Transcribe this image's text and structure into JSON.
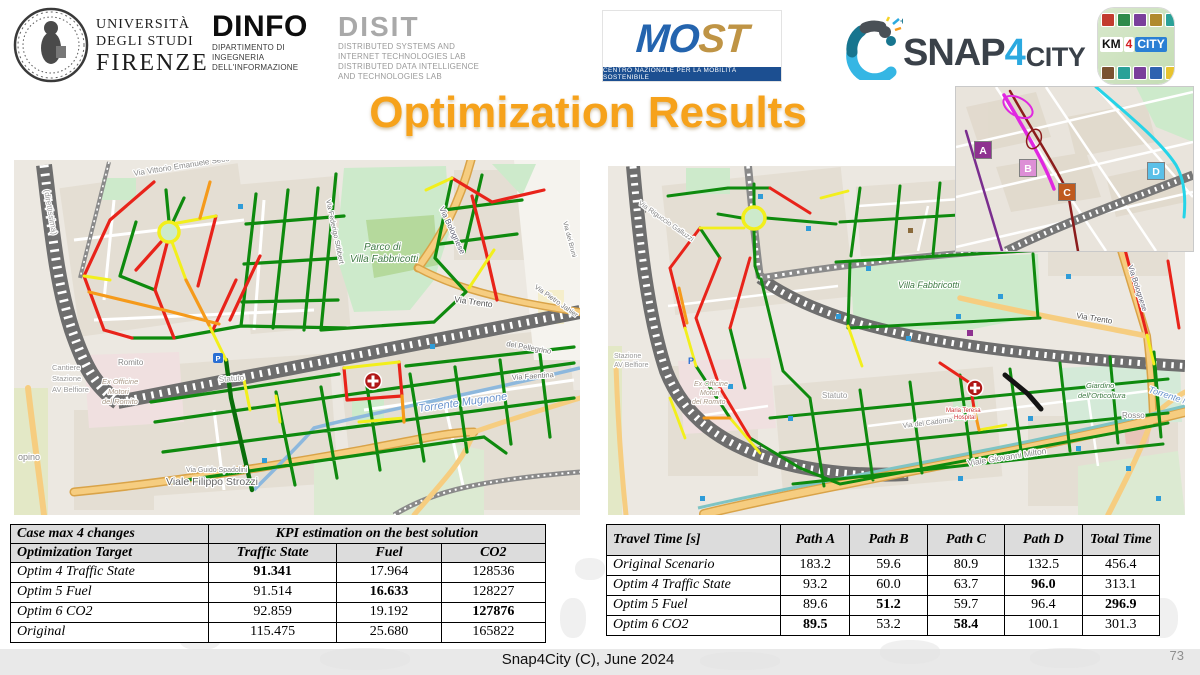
{
  "title": "Optimization Results",
  "header": {
    "unifi": {
      "line1": "UNIVERSITÀ",
      "line2": "DEGLI STUDI",
      "line3": "FIRENZE"
    },
    "dinfo": {
      "name": "DINFO",
      "lines": [
        "DIPARTIMENTO DI",
        "INGEGNERIA",
        "DELL'INFORMAZIONE"
      ]
    },
    "disit": {
      "name": "DISIT",
      "lines": [
        "DISTRIBUTED SYSTEMS AND",
        "INTERNET TECHNOLOGIES LAB",
        "DISTRIBUTED DATA INTELLIGENCE",
        "AND TECHNOLOGIES LAB"
      ]
    },
    "most": {
      "mo": "MO",
      "st": "ST",
      "caption": "CENTRO NAZIONALE PER LA MOBILITÀ SOSTENIBILE"
    },
    "snap4city": {
      "snap": "SNAP",
      "four": "4",
      "city": "CITY"
    },
    "km4city": {
      "km": "KM",
      "four": "4",
      "city": "CITY"
    }
  },
  "maps": {
    "left": {
      "labels": {
        "vittorio": "Via Vittorio Emanuele Seco",
        "direttissima": "(direttissima)",
        "parco1": "Parco di",
        "parco2": "Villa Fabbricotti",
        "stibbert": "Via Federigo Stibbert",
        "bolognese": "Via Bolognese",
        "trento": "Via Trento",
        "jahier": "Via Pietro Jahier",
        "bruni": "Via dei Bruni",
        "pellegrino": "del Pellegrino",
        "faentina": "Via Faentina",
        "mugnone": "Torrente Mugnone",
        "cantiere1": "Cantiere",
        "cantiere2": "Stazione",
        "cantiere3": "AV Belfiore",
        "romito": "Romito",
        "exofficine1": "Ex Officine",
        "exofficine2": "Motori",
        "exofficine3": "del Romito",
        "statuto": "Statuto",
        "spadolini": "Via Guido Spadolini",
        "strozzi": "Viale Filippo Strozzi",
        "opino": "opino",
        "parking": "P"
      }
    },
    "right": {
      "labels": {
        "galluzzi": "Via Riguccio Galluzzi",
        "villa": "Villa Fabbricotti",
        "trento": "Via Trento",
        "bolognese": "Via Bolognese",
        "belfiore1": "Stazione",
        "belfiore2": "AV Belfiore",
        "exofficine1": "Ex Officine",
        "exofficine2": "Motori",
        "exofficine3": "del Romito",
        "statuto": "Statuto",
        "cadorna": "Via del Cadorna",
        "orticoltura1": "Giardino",
        "orticoltura2": "dell'Orticoltura",
        "milton": "Viale Giovanni Milton",
        "rosso": "Rosso",
        "mugnone": "Torrente Mugnone",
        "hospital1": "Maria Teresa",
        "hospital2": "Hospital",
        "parking": "P"
      }
    },
    "inset": {
      "markers": [
        {
          "label": "A",
          "color": "#8e3290"
        },
        {
          "label": "B",
          "color": "#dd8fd6"
        },
        {
          "label": "C",
          "color": "#bf5a1f"
        },
        {
          "label": "D",
          "color": "#5bc0e8"
        }
      ]
    }
  },
  "tables": {
    "kpi": {
      "header_rows": [
        [
          {
            "t": "Case max 4 changes",
            "c": 1
          },
          {
            "t": "KPI estimation on the best solution",
            "c": 3
          }
        ],
        [
          {
            "t": "Optimization Target",
            "c": 1
          },
          {
            "t": "Traffic State",
            "c": 1
          },
          {
            "t": "Fuel",
            "c": 1
          },
          {
            "t": "CO2",
            "c": 1
          }
        ]
      ],
      "rows": [
        {
          "label": "Optim 4 Traffic State",
          "values": [
            "91.341",
            "17.964",
            "128536"
          ],
          "bold": [
            0
          ]
        },
        {
          "label": "Optim 5 Fuel",
          "values": [
            "91.514",
            "16.633",
            "128227"
          ],
          "bold": [
            1
          ]
        },
        {
          "label": "Optim 6 CO2",
          "values": [
            "92.859",
            "19.192",
            "127876"
          ],
          "bold": [
            2
          ]
        },
        {
          "label": "Original",
          "values": [
            "115.475",
            "25.680",
            "165822"
          ],
          "bold": []
        }
      ]
    },
    "travel_time": {
      "header_rows": [
        [
          {
            "t": "Travel Time [s]",
            "c": 1
          },
          {
            "t": "Path A",
            "c": 1
          },
          {
            "t": "Path B",
            "c": 1
          },
          {
            "t": "Path C",
            "c": 1
          },
          {
            "t": "Path D",
            "c": 1
          },
          {
            "t": "Total Time",
            "c": 1
          }
        ]
      ],
      "rows": [
        {
          "label": "Original  Scenario",
          "values": [
            "183.2",
            "59.6",
            "80.9",
            "132.5",
            "456.4"
          ],
          "bold": []
        },
        {
          "label": "Optim 4 Traffic State",
          "values": [
            "93.2",
            "60.0",
            "63.7",
            "96.0",
            "313.1"
          ],
          "bold": [
            3
          ]
        },
        {
          "label": "Optim 5 Fuel",
          "values": [
            "89.6",
            "51.2",
            "59.7",
            "96.4",
            "296.9"
          ],
          "bold": [
            1,
            4
          ]
        },
        {
          "label": "Optim 6 CO2",
          "values": [
            "89.5",
            "53.2",
            "58.4",
            "100.1",
            "301.3"
          ],
          "bold": [
            0,
            2
          ]
        }
      ]
    }
  },
  "footer": {
    "text": "Snap4City (C), June 2024",
    "page": "73"
  },
  "colors": {
    "title": "#F6A21B",
    "traffic_green": "#0E8A0E",
    "traffic_red": "#E8231A",
    "traffic_yellow": "#F2EF1C",
    "traffic_orange": "#F59A1B",
    "path_a": "#8E3290",
    "path_b": "#DD8FD6",
    "path_c": "#BF5A1F",
    "path_d": "#5BC0E8",
    "most_blue": "#2464AE",
    "most_gold": "#BF9445",
    "snap_blue": "#2BA9E0"
  }
}
